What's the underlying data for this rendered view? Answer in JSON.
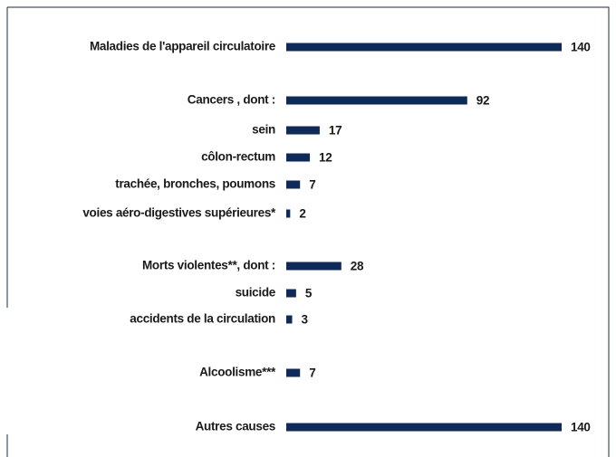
{
  "chart_data": {
    "type": "bar",
    "orientation": "horizontal",
    "color": "#0d2a5a",
    "categories": [
      "Maladies de l'appareil circulatoire",
      "Cancers , dont :",
      "sein",
      "côlon-rectum",
      "trachée, bronches, poumons",
      "voies aéro-digestives supérieures*",
      "Morts violentes**, dont :",
      "suicide",
      "accidents de la circulation",
      "Alcoolisme***",
      "Autres causes"
    ],
    "values": [
      140,
      92,
      17,
      12,
      7,
      2,
      28,
      5,
      3,
      7,
      140
    ]
  }
}
